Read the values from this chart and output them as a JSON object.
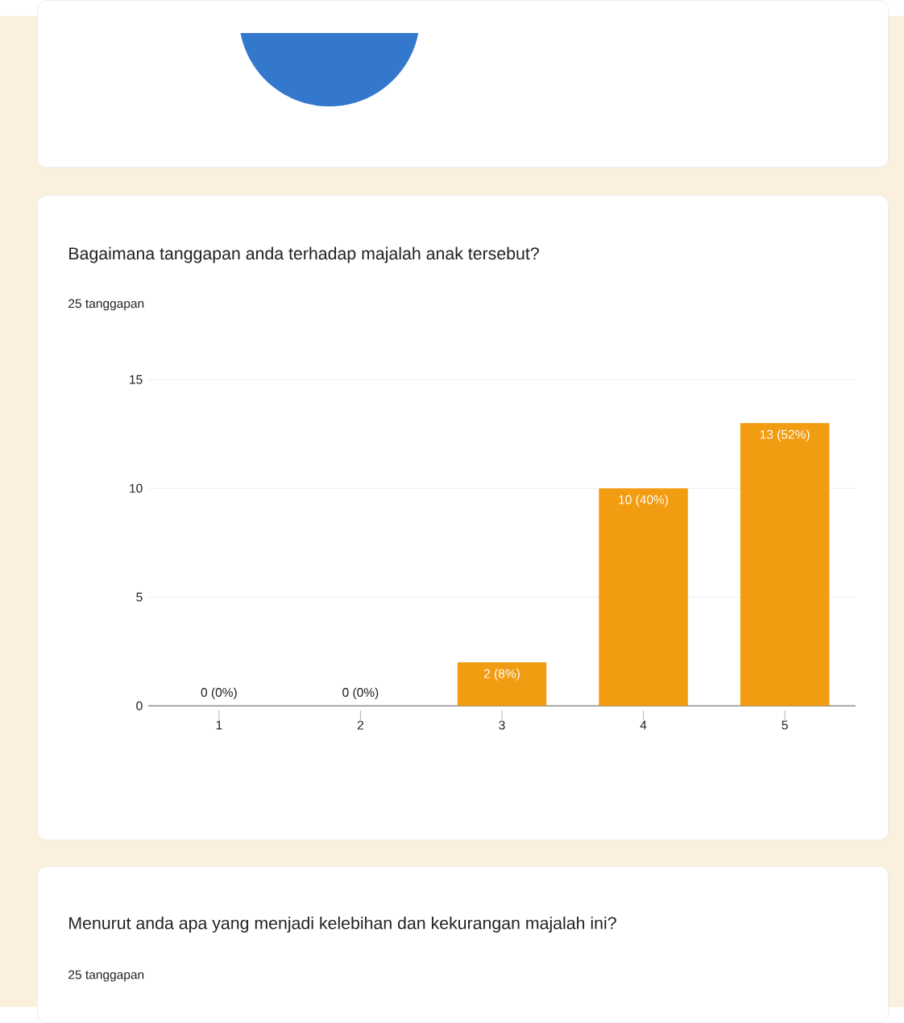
{
  "chart_data": {
    "type": "bar",
    "title": "Bagaimana tanggapan anda terhadap majalah anak tersebut?",
    "subtitle": "25 tanggapan",
    "categories": [
      "1",
      "2",
      "3",
      "4",
      "5"
    ],
    "values": [
      0,
      0,
      2,
      10,
      13
    ],
    "value_labels": [
      "0 (0%)",
      "0 (0%)",
      "2 (8%)",
      "10 (40%)",
      "13 (52%)"
    ],
    "color": "#f29c12",
    "ylim": [
      0,
      15
    ],
    "yticks": [
      0,
      5,
      10,
      15
    ],
    "grid": "y",
    "annotations": [
      "Menurut anda apa yang menjadi kelebihan dan kekurangan majalah ini?",
      "25 tanggapan"
    ]
  }
}
